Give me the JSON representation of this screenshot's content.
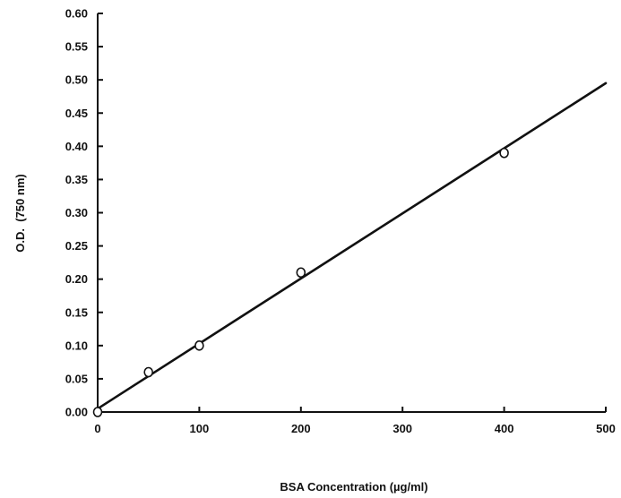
{
  "chart_data": {
    "type": "scatter",
    "title": "",
    "xlabel": "BSA Concentration (µg/ml)",
    "ylabel": "O.D.  (750 nm)",
    "xlim": [
      0,
      500
    ],
    "ylim": [
      0,
      0.6
    ],
    "x_ticks": [
      "0",
      "100",
      "200",
      "300",
      "400",
      "500"
    ],
    "y_ticks": [
      "0.00",
      "0.05",
      "0.10",
      "0.15",
      "0.20",
      "0.25",
      "0.30",
      "0.35",
      "0.40",
      "0.45",
      "0.50",
      "0.55",
      "0.60"
    ],
    "grid": false,
    "legend": "none",
    "series": [
      {
        "marker": "open-circle",
        "x": [
          0,
          50,
          100,
          200,
          400
        ],
        "y": [
          0.0,
          0.06,
          0.1,
          0.21,
          0.39
        ]
      }
    ],
    "fit_line": {
      "x": [
        0,
        500
      ],
      "y": [
        0.005,
        0.495
      ]
    },
    "colors": {
      "ink": "#111111",
      "background": "#ffffff"
    }
  }
}
